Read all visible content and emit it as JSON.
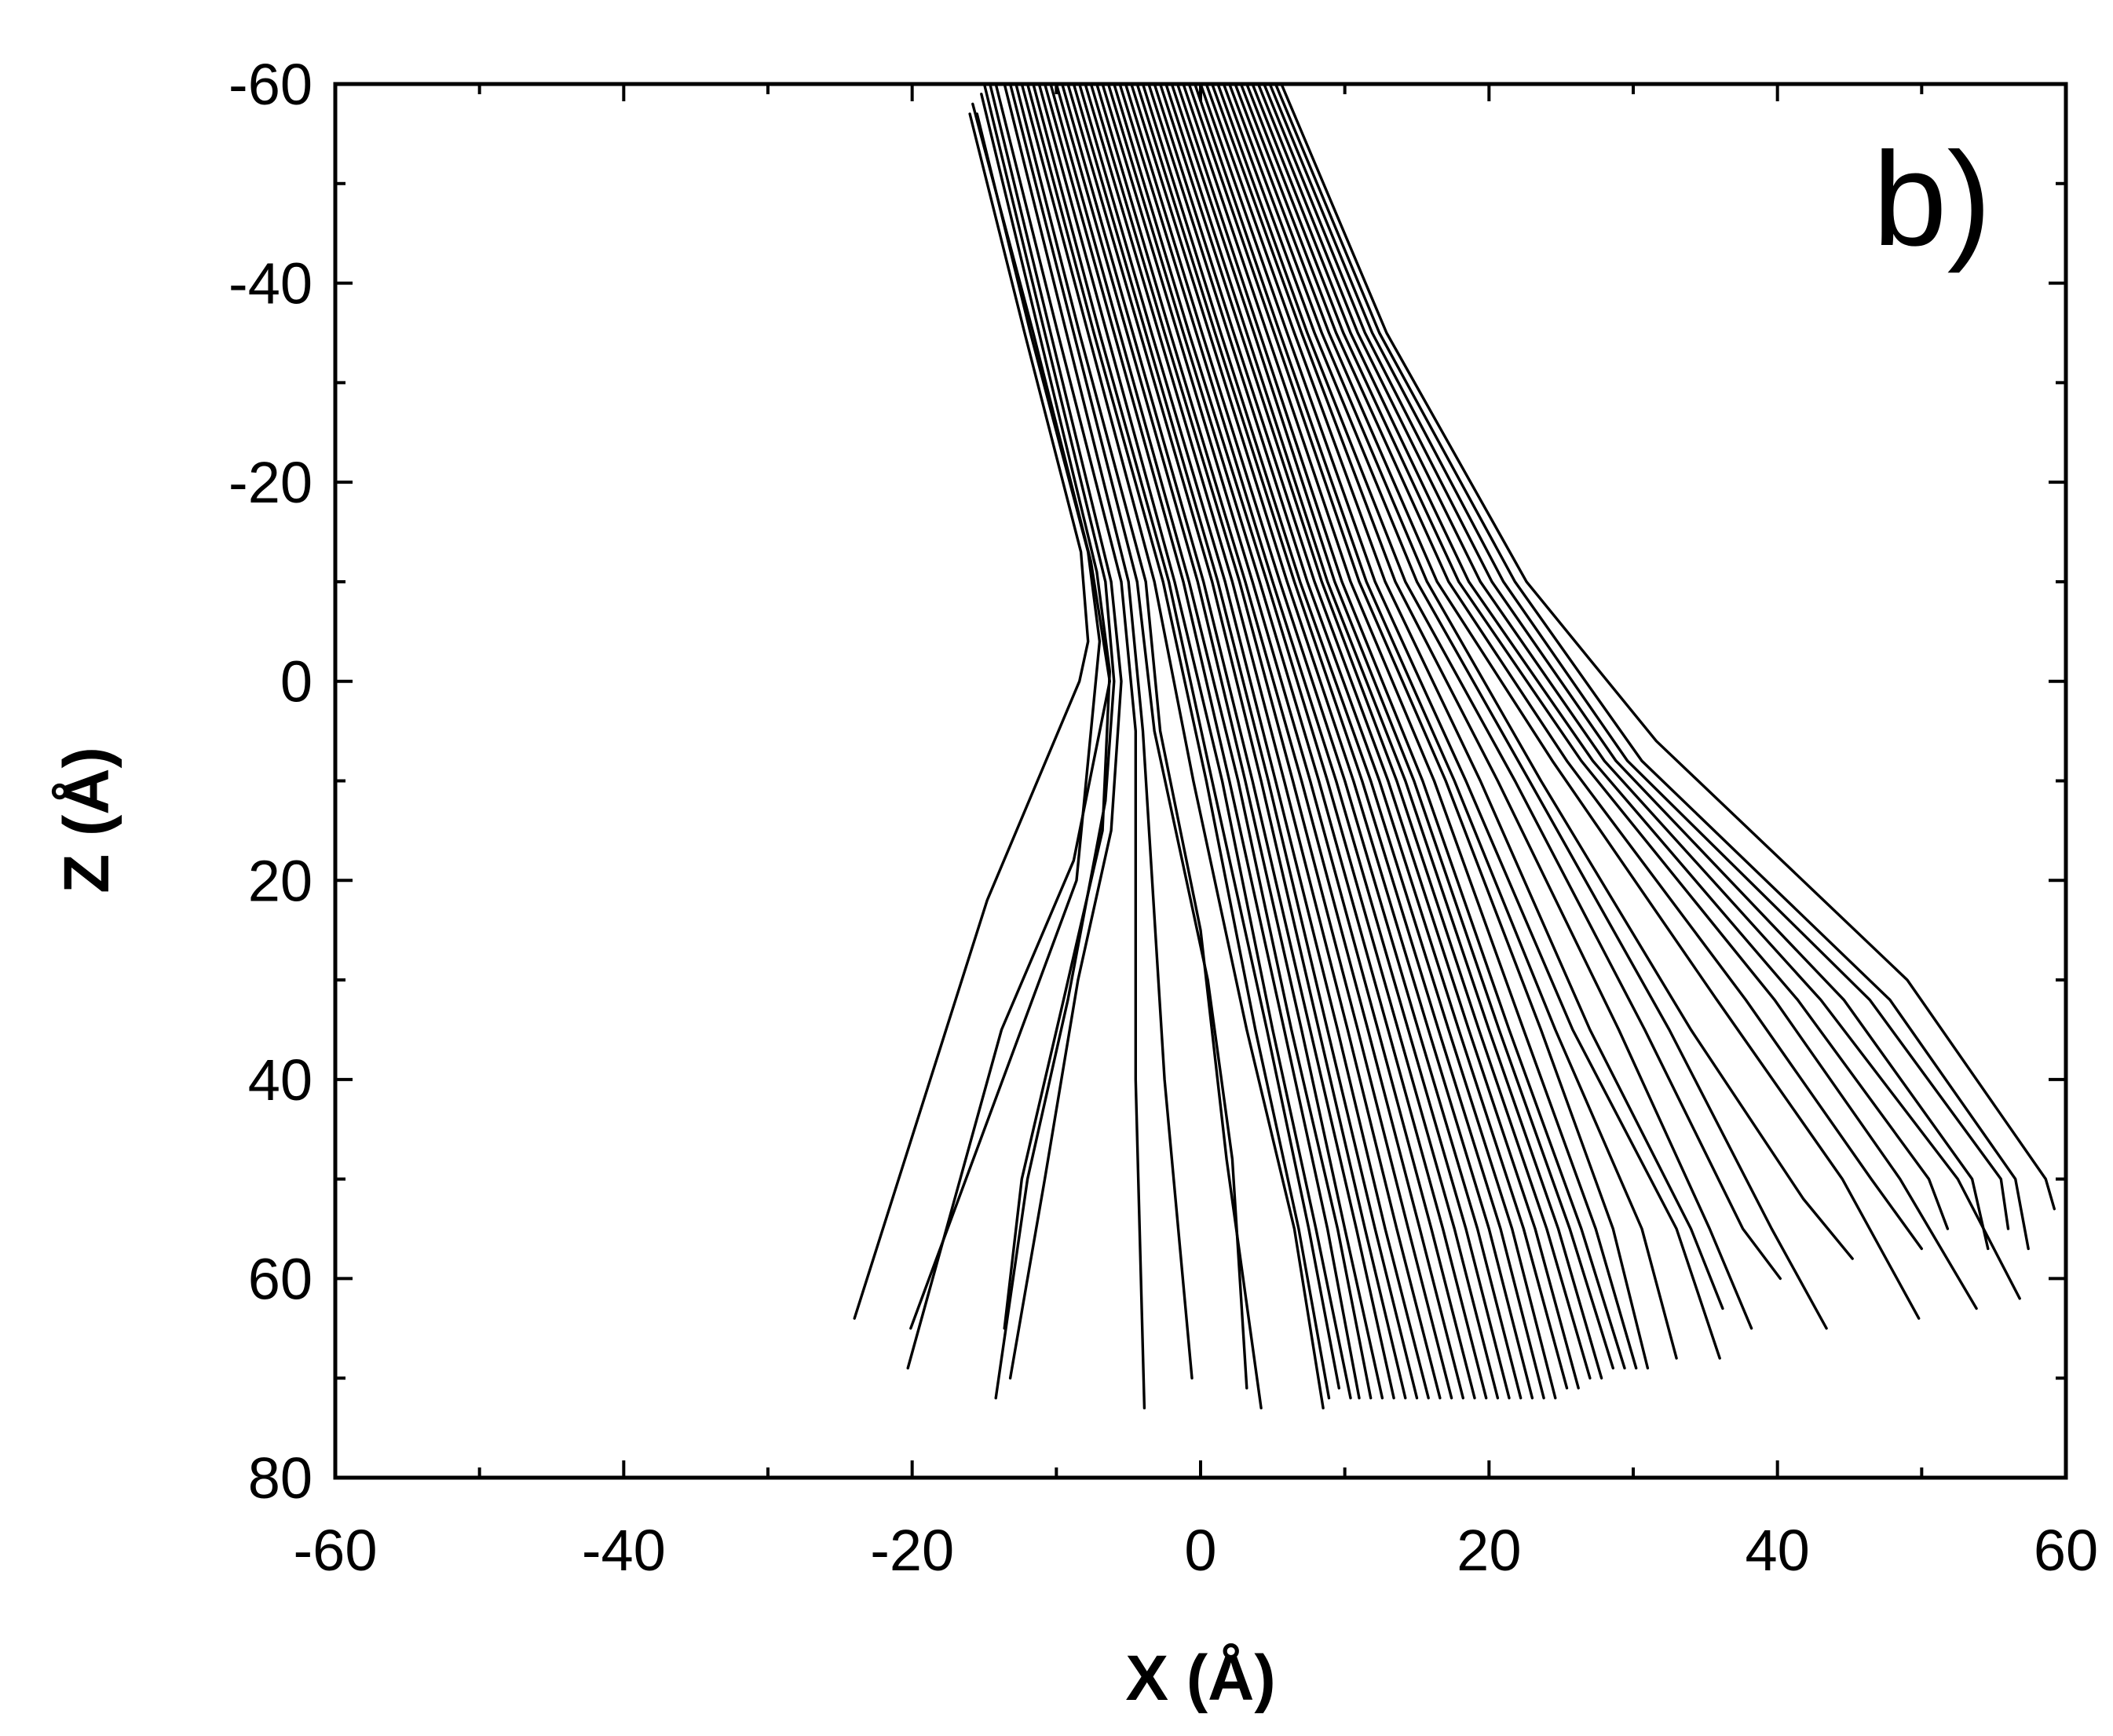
{
  "chart_data": {
    "type": "line",
    "panel_label": "b)",
    "xlabel": "X (Å)",
    "ylabel": "Z (Å)",
    "xlim": [
      -60,
      60
    ],
    "ylim": [
      -60,
      80
    ],
    "y_inverted": true,
    "x_ticks": [
      -60,
      -40,
      -20,
      0,
      20,
      40,
      60
    ],
    "y_ticks": [
      -60,
      -40,
      -20,
      0,
      20,
      40,
      60,
      80
    ],
    "x_minor_step": 10,
    "y_minor_step": 10,
    "grid": false,
    "legend": "none",
    "line_color": "#000000",
    "series": [
      {
        "x": [
          -16.0,
          -12.2,
          -8.3,
          -7.8,
          -8.4,
          -14.8,
          -24.0
        ],
        "y": [
          -57.0,
          -35.0,
          -13.0,
          -4.0,
          0.0,
          22.0,
          64.0
        ]
      },
      {
        "x": [
          -15.5,
          -11.8,
          -7.8,
          -7.0,
          -8.6,
          -20.1
        ],
        "y": [
          -57.0,
          -35.0,
          -13.0,
          -4.0,
          20.0,
          65.0
        ]
      },
      {
        "x": [
          -15.8,
          -11.6,
          -7.6,
          -6.3,
          -8.8,
          -13.8,
          -20.3
        ],
        "y": [
          -58.0,
          -35.0,
          -12.0,
          0.0,
          18.0,
          35.0,
          69.0
        ]
      },
      {
        "x": [
          -15.2,
          -11.2,
          -7.2,
          -6.3,
          -6.8,
          -9.5,
          -12.4,
          -13.6
        ],
        "y": [
          -59.0,
          -35.0,
          -11.0,
          -1.0,
          15.0,
          32.0,
          50.0,
          65.0
        ]
      },
      {
        "x": [
          -15.0,
          -10.8,
          -6.6,
          -6.0,
          -6.6,
          -9.2,
          -12.0,
          -14.2
        ],
        "y": [
          -60.0,
          -35.0,
          -10.0,
          0.0,
          12.0,
          32.0,
          50.0,
          72.0
        ]
      },
      {
        "x": [
          -14.6,
          -10.4,
          -6.2,
          -5.5,
          -6.2,
          -8.5,
          -10.8,
          -13.2
        ],
        "y": [
          -60.0,
          -35.0,
          -10.0,
          0.0,
          15.0,
          30.0,
          50.0,
          70.0
        ]
      },
      {
        "x": [
          -14.2,
          -9.9,
          -5.5,
          -4.5,
          -4.5,
          -3.9
        ],
        "y": [
          -60.0,
          -35.0,
          -10.0,
          5.0,
          40.0,
          73.0
        ]
      },
      {
        "x": [
          -13.6,
          -9.3,
          -5.0,
          -4.0,
          -2.5,
          -0.6
        ],
        "y": [
          -60.0,
          -35.0,
          -10.0,
          5.0,
          40.0,
          70.0
        ]
      },
      {
        "x": [
          -13.2,
          -8.8,
          -4.4,
          -3.2,
          0.5,
          2.2,
          3.2
        ],
        "y": [
          -60.0,
          -35.0,
          -10.0,
          5.0,
          30.0,
          48.0,
          71.0
        ]
      },
      {
        "x": [
          -12.8,
          -8.4,
          -3.8,
          -2.8,
          0.0,
          1.8,
          4.2
        ],
        "y": [
          -60.0,
          -35.0,
          -10.0,
          5.0,
          25.0,
          48.0,
          73.0
        ]
      },
      {
        "x": [
          -12.4,
          -7.8,
          -3.2,
          -0.5,
          3.2,
          6.5,
          8.5
        ],
        "y": [
          -60.0,
          -35.0,
          -10.0,
          10.0,
          35.0,
          55.0,
          73.0
        ]
      },
      {
        "x": [
          -12.0,
          -7.4,
          -2.6,
          0.4,
          3.8,
          6.8,
          8.9
        ],
        "y": [
          -60.0,
          -35.0,
          -10.0,
          10.0,
          35.0,
          55.0,
          72.0
        ]
      },
      {
        "x": [
          -11.6,
          -7.0,
          -2.2,
          0.8,
          4.6,
          7.5,
          9.6
        ],
        "y": [
          -60.0,
          -35.0,
          -10.0,
          10.0,
          35.0,
          55.0,
          71.0
        ]
      },
      {
        "x": [
          -11.2,
          -6.5,
          -1.8,
          1.5,
          5.0,
          8.0,
          10.4
        ],
        "y": [
          -60.0,
          -35.0,
          -10.0,
          10.0,
          35.0,
          55.0,
          72.0
        ]
      },
      {
        "x": [
          -10.8,
          -6.0,
          -1.2,
          2.0,
          5.8,
          8.8,
          11.0
        ],
        "y": [
          -60.0,
          -35.0,
          -10.0,
          10.0,
          35.0,
          55.0,
          72.0
        ]
      },
      {
        "x": [
          -10.4,
          -5.6,
          -0.8,
          2.6,
          6.3,
          9.5,
          11.8
        ],
        "y": [
          -60.0,
          -35.0,
          -10.0,
          10.0,
          35.0,
          55.0,
          72.0
        ]
      },
      {
        "x": [
          -10.0,
          -5.1,
          -0.2,
          3.1,
          7.0,
          10.0,
          12.6
        ],
        "y": [
          -60.0,
          -35.0,
          -10.0,
          10.0,
          35.0,
          55.0,
          72.0
        ]
      },
      {
        "x": [
          -9.6,
          -4.7,
          0.2,
          3.6,
          7.6,
          10.8,
          13.4
        ],
        "y": [
          -60.0,
          -35.0,
          -10.0,
          10.0,
          35.0,
          55.0,
          72.0
        ]
      },
      {
        "x": [
          -9.2,
          -4.2,
          0.8,
          4.2,
          8.2,
          11.4,
          14.2
        ],
        "y": [
          -60.0,
          -35.0,
          -10.0,
          10.0,
          35.0,
          55.0,
          72.0
        ]
      },
      {
        "x": [
          -8.8,
          -3.8,
          1.2,
          4.7,
          8.8,
          12.1,
          15.0
        ],
        "y": [
          -60.0,
          -35.0,
          -10.0,
          10.0,
          35.0,
          55.0,
          72.0
        ]
      },
      {
        "x": [
          -8.4,
          -3.4,
          1.7,
          5.2,
          9.5,
          12.8,
          15.8
        ],
        "y": [
          -60.0,
          -35.0,
          -10.0,
          10.0,
          35.0,
          55.0,
          72.0
        ]
      },
      {
        "x": [
          -8.0,
          -2.9,
          2.2,
          5.8,
          10.2,
          13.6,
          16.6
        ],
        "y": [
          -60.0,
          -35.0,
          -10.0,
          10.0,
          35.0,
          55.0,
          72.0
        ]
      },
      {
        "x": [
          -7.6,
          -2.5,
          2.7,
          6.4,
          10.9,
          14.4,
          17.4
        ],
        "y": [
          -60.0,
          -35.0,
          -10.0,
          10.0,
          35.0,
          55.0,
          72.0
        ]
      },
      {
        "x": [
          -7.2,
          -2.1,
          3.1,
          7.0,
          11.6,
          15.2,
          18.2
        ],
        "y": [
          -60.0,
          -35.0,
          -10.0,
          10.0,
          35.0,
          55.0,
          72.0
        ]
      },
      {
        "x": [
          -6.8,
          -1.6,
          3.6,
          7.6,
          12.3,
          16.0,
          19.0
        ],
        "y": [
          -60.0,
          -35.0,
          -10.0,
          10.0,
          35.0,
          55.0,
          72.0
        ]
      },
      {
        "x": [
          -6.4,
          -1.2,
          4.1,
          8.2,
          13.0,
          16.8,
          19.8
        ],
        "y": [
          -60.0,
          -35.0,
          -10.0,
          10.0,
          35.0,
          55.0,
          72.0
        ]
      },
      {
        "x": [
          -6.0,
          -0.8,
          4.6,
          8.8,
          13.7,
          17.6,
          20.6
        ],
        "y": [
          -60.0,
          -35.0,
          -10.0,
          10.0,
          35.0,
          55.0,
          72.0
        ]
      },
      {
        "x": [
          -5.6,
          -0.3,
          5.0,
          9.4,
          14.4,
          18.4,
          21.4
        ],
        "y": [
          -60.0,
          -35.0,
          -10.0,
          10.0,
          35.0,
          55.0,
          72.0
        ]
      },
      {
        "x": [
          -5.2,
          0.1,
          5.5,
          10.0,
          15.1,
          19.2,
          22.2
        ],
        "y": [
          -60.0,
          -35.0,
          -10.0,
          10.0,
          35.0,
          55.0,
          72.0
        ]
      },
      {
        "x": [
          -4.8,
          0.6,
          6.0,
          10.6,
          15.8,
          20.0,
          23.0
        ],
        "y": [
          -60.0,
          -35.0,
          -10.0,
          10.0,
          35.0,
          55.0,
          72.0
        ]
      },
      {
        "x": [
          -4.4,
          1.0,
          6.5,
          11.2,
          16.5,
          20.8,
          23.8
        ],
        "y": [
          -60.0,
          -35.0,
          -10.0,
          10.0,
          35.0,
          55.0,
          72.0
        ]
      },
      {
        "x": [
          -4.0,
          1.4,
          6.9,
          11.8,
          17.2,
          21.6,
          24.6
        ],
        "y": [
          -60.0,
          -35.0,
          -10.0,
          10.0,
          35.0,
          55.0,
          72.0
        ]
      },
      {
        "x": [
          -3.6,
          1.9,
          7.4,
          12.4,
          17.9,
          22.4,
          25.4
        ],
        "y": [
          -60.0,
          -35.0,
          -10.0,
          10.0,
          35.0,
          55.0,
          71.0
        ]
      },
      {
        "x": [
          -3.2,
          2.3,
          7.9,
          13.0,
          18.6,
          23.2,
          26.2
        ],
        "y": [
          -60.0,
          -35.0,
          -10.0,
          10.0,
          35.0,
          55.0,
          71.0
        ]
      },
      {
        "x": [
          -2.8,
          2.8,
          8.4,
          13.6,
          19.3,
          24.0,
          27.0
        ],
        "y": [
          -60.0,
          -35.0,
          -10.0,
          10.0,
          35.0,
          55.0,
          70.0
        ]
      },
      {
        "x": [
          -2.4,
          3.2,
          8.8,
          14.2,
          20.0,
          24.8,
          27.8
        ],
        "y": [
          -60.0,
          -35.0,
          -10.0,
          10.0,
          35.0,
          55.0,
          70.0
        ]
      },
      {
        "x": [
          -2.0,
          3.7,
          9.3,
          14.8,
          20.7,
          25.6,
          28.6
        ],
        "y": [
          -60.0,
          -35.0,
          -10.0,
          10.0,
          35.0,
          55.0,
          69.0
        ]
      },
      {
        "x": [
          -1.6,
          4.1,
          9.8,
          15.4,
          21.4,
          26.4,
          29.4
        ],
        "y": [
          -60.0,
          -35.0,
          -10.0,
          10.0,
          35.0,
          55.0,
          69.0
        ]
      },
      {
        "x": [
          -1.2,
          4.6,
          10.4,
          16.2,
          22.4,
          27.4,
          30.2
        ],
        "y": [
          -60.0,
          -35.0,
          -10.0,
          10.0,
          35.0,
          55.0,
          69.0
        ]
      },
      {
        "x": [
          -0.8,
          5.1,
          11.0,
          17.0,
          23.6,
          28.6,
          31.0
        ],
        "y": [
          -60.0,
          -35.0,
          -10.0,
          10.0,
          35.0,
          55.0,
          69.0
        ]
      },
      {
        "x": [
          -0.4,
          5.5,
          11.5,
          17.6,
          24.6,
          30.6,
          33.0
        ],
        "y": [
          -60.0,
          -35.0,
          -10.0,
          10.0,
          35.0,
          55.0,
          68.0
        ]
      },
      {
        "x": [
          0.0,
          6.0,
          12.1,
          18.4,
          25.8,
          33.0,
          36.0
        ],
        "y": [
          -60.0,
          -35.0,
          -10.0,
          10.0,
          35.0,
          55.0,
          68.0
        ]
      },
      {
        "x": [
          0.4,
          6.5,
          12.8,
          19.4,
          27.0,
          34.0,
          36.2
        ],
        "y": [
          -60.0,
          -35.0,
          -10.0,
          10.0,
          35.0,
          55.0,
          63.0
        ]
      },
      {
        "x": [
          0.8,
          7.0,
          13.5,
          20.6,
          29.0,
          35.3,
          38.2
        ],
        "y": [
          -60.0,
          -35.0,
          -10.0,
          10.0,
          35.0,
          55.0,
          65.0
        ]
      },
      {
        "x": [
          1.2,
          7.4,
          14.2,
          21.8,
          30.8,
          37.6,
          40.2
        ],
        "y": [
          -60.0,
          -35.0,
          -10.0,
          10.0,
          35.0,
          55.0,
          60.0
        ]
      },
      {
        "x": [
          1.6,
          7.9,
          15.0,
          22.8,
          32.5,
          39.6,
          43.4
        ],
        "y": [
          -60.0,
          -35.0,
          -10.0,
          10.0,
          35.0,
          55.0,
          65.0
        ]
      },
      {
        "x": [
          2.0,
          8.4,
          15.7,
          23.6,
          34.0,
          41.8,
          45.2
        ],
        "y": [
          -60.0,
          -35.0,
          -10.0,
          10.0,
          35.0,
          52.0,
          58.0
        ]
      },
      {
        "x": [
          2.4,
          8.9,
          16.4,
          24.4,
          35.8,
          44.5,
          49.8
        ],
        "y": [
          -60.0,
          -35.0,
          -10.0,
          8.0,
          32.0,
          50.0,
          64.0
        ]
      },
      {
        "x": [
          2.8,
          9.4,
          17.2,
          25.4,
          37.8,
          46.5,
          50.0
        ],
        "y": [
          -60.0,
          -35.0,
          -10.0,
          8.0,
          32.0,
          50.0,
          57.0
        ]
      },
      {
        "x": [
          3.2,
          9.9,
          17.9,
          26.4,
          39.8,
          48.5,
          53.8
        ],
        "y": [
          -60.0,
          -35.0,
          -10.0,
          8.0,
          32.0,
          50.0,
          63.0
        ]
      },
      {
        "x": [
          3.6,
          10.4,
          18.6,
          27.2,
          41.4,
          50.5,
          51.8
        ],
        "y": [
          -60.0,
          -35.0,
          -10.0,
          8.0,
          32.0,
          50.0,
          55.0
        ]
      },
      {
        "x": [
          4.0,
          10.9,
          19.4,
          28.0,
          43.0,
          52.5,
          56.8
        ],
        "y": [
          -60.0,
          -35.0,
          -10.0,
          8.0,
          32.0,
          50.0,
          62.0
        ]
      },
      {
        "x": [
          4.4,
          11.4,
          20.2,
          28.8,
          44.6,
          53.5,
          54.6
        ],
        "y": [
          -60.0,
          -35.0,
          -10.0,
          8.0,
          32.0,
          50.0,
          57.0
        ]
      },
      {
        "x": [
          4.8,
          11.9,
          21.0,
          29.6,
          46.4,
          55.5,
          56.0
        ],
        "y": [
          -60.0,
          -35.0,
          -10.0,
          8.0,
          32.0,
          50.0,
          55.0
        ]
      },
      {
        "x": [
          5.2,
          12.4,
          21.8,
          30.6,
          47.8,
          56.5,
          57.4
        ],
        "y": [
          -60.0,
          -35.0,
          -10.0,
          8.0,
          32.0,
          50.0,
          57.0
        ]
      },
      {
        "x": [
          5.6,
          12.9,
          22.6,
          31.6,
          49.0,
          58.6,
          59.2
        ],
        "y": [
          -60.0,
          -35.0,
          -10.0,
          6.0,
          30.0,
          50.0,
          53.0
        ]
      }
    ]
  }
}
